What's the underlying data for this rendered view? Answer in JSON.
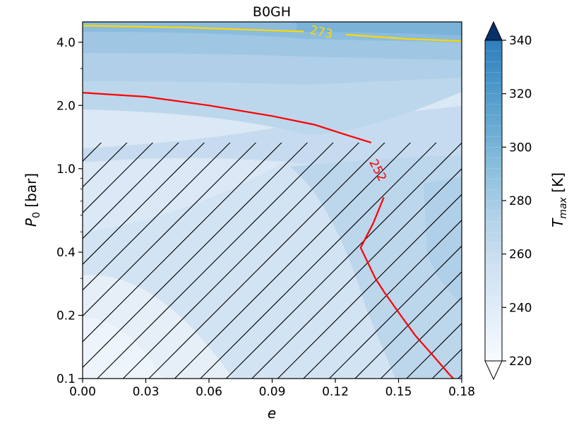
{
  "chart_data": {
    "type": "contour",
    "title": "B0GH",
    "xlabel": "e",
    "ylabel": "P_0 [bar]",
    "ylabel_main": "P",
    "ylabel_sub": "0",
    "ylabel_rest": " [bar]",
    "xscale": "linear",
    "yscale": "log",
    "xlim": [
      0.0,
      0.18
    ],
    "ylim": [
      0.1,
      5.0
    ],
    "x_ticks": [
      0.0,
      0.03,
      0.06,
      0.09,
      0.12,
      0.15,
      0.18
    ],
    "x_tick_labels": [
      "0.00",
      "0.03",
      "0.06",
      "0.09",
      "0.12",
      "0.15",
      "0.18"
    ],
    "y_ticks": [
      0.1,
      0.2,
      0.4,
      1.0,
      2.0,
      4.0
    ],
    "y_tick_labels": [
      "0.1",
      "0.2",
      "0.4",
      "1.0",
      "2.0",
      "4.0"
    ],
    "colorbar": {
      "label": "T_max [K]",
      "label_main": "T",
      "label_sub": "max",
      "label_rest": " [K]",
      "range": [
        220,
        340
      ],
      "ticks": [
        220,
        240,
        260,
        280,
        300,
        320,
        340
      ],
      "tick_labels": [
        "220",
        "240",
        "260",
        "280",
        "300",
        "320",
        "340"
      ],
      "colormap": "Blues",
      "extend": "both"
    },
    "contour_lines": [
      {
        "level": 273,
        "label": "273",
        "color": "#ffd700",
        "points": [
          [
            0.0,
            4.8
          ],
          [
            0.05,
            4.7
          ],
          [
            0.09,
            4.55
          ],
          [
            0.105,
            4.5
          ],
          [
            0.125,
            4.35
          ],
          [
            0.154,
            4.15
          ],
          [
            0.18,
            4.05
          ]
        ]
      },
      {
        "level": 252,
        "label": "252",
        "color": "#ff0000",
        "points": [
          [
            0.0,
            2.3
          ],
          [
            0.03,
            2.2
          ],
          [
            0.06,
            2.0
          ],
          [
            0.09,
            1.78
          ],
          [
            0.11,
            1.62
          ],
          [
            0.125,
            1.45
          ],
          [
            0.137,
            1.33
          ],
          [
            0.143,
            0.73
          ],
          [
            0.138,
            0.55
          ],
          [
            0.132,
            0.42
          ],
          [
            0.139,
            0.3
          ],
          [
            0.143,
            0.26
          ],
          [
            0.151,
            0.2
          ],
          [
            0.158,
            0.16
          ],
          [
            0.166,
            0.13
          ],
          [
            0.174,
            0.105
          ],
          [
            0.176,
            0.1
          ]
        ]
      }
    ],
    "hatched_region": {
      "e_range": [
        0.0,
        0.18
      ],
      "p0_max": 1.4
    },
    "colors": {
      "line_252": "#ff0000",
      "line_273": "#ffd700",
      "hatch": "#000000"
    }
  }
}
